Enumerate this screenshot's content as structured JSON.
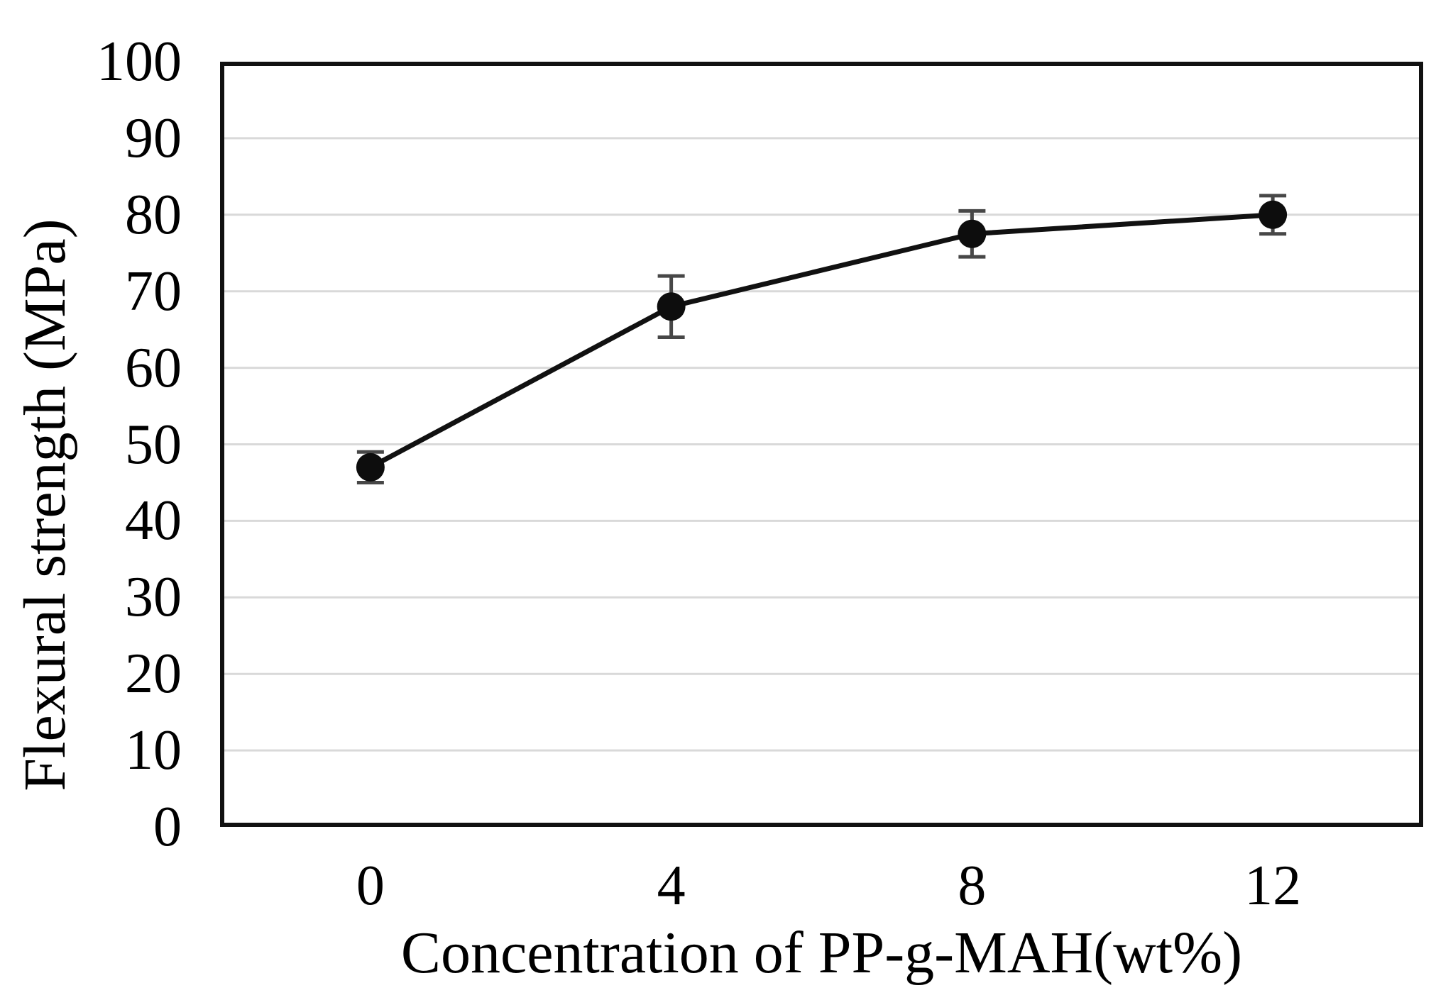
{
  "figure": {
    "background": "#ffffff"
  },
  "chart_data": {
    "type": "line",
    "title": "",
    "xlabel": "Concentration of PP-g-MAH(wt%)",
    "ylabel": "Flexural strength (MPa)",
    "categories": [
      "0",
      "4",
      "8",
      "12"
    ],
    "series": [
      {
        "name": "Flexural strength",
        "values": [
          47,
          68,
          77.5,
          80
        ],
        "error_bars": [
          2,
          4,
          3,
          2.5
        ]
      }
    ],
    "ylim": [
      0,
      100
    ],
    "ytick_step": 10,
    "yticks": [
      "100",
      "90",
      "80",
      "70",
      "60",
      "50",
      "40",
      "30",
      "20",
      "10",
      "0"
    ],
    "grid": "horizontal-only",
    "legend": "none",
    "marker": "filled-circle",
    "colors": {
      "line": "#111111",
      "marker": "#0d0d0d",
      "error_bar": "#474747",
      "gridline": "#d9d9d9",
      "frame": "#111111",
      "text": "#000000"
    }
  }
}
